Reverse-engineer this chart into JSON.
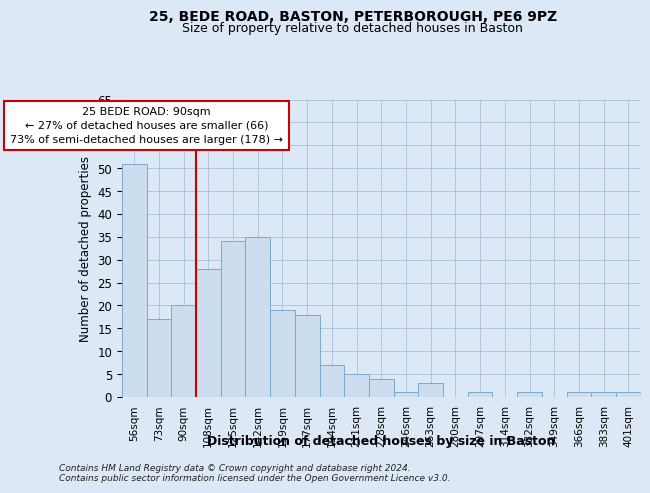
{
  "title_line1": "25, BEDE ROAD, BASTON, PETERBOROUGH, PE6 9PZ",
  "title_line2": "Size of property relative to detached houses in Baston",
  "xlabel": "Distribution of detached houses by size in Baston",
  "ylabel": "Number of detached properties",
  "categories": [
    "56sqm",
    "73sqm",
    "90sqm",
    "108sqm",
    "125sqm",
    "142sqm",
    "159sqm",
    "177sqm",
    "194sqm",
    "211sqm",
    "228sqm",
    "246sqm",
    "263sqm",
    "280sqm",
    "297sqm",
    "314sqm",
    "332sqm",
    "349sqm",
    "366sqm",
    "383sqm",
    "401sqm"
  ],
  "values": [
    51,
    17,
    20,
    28,
    34,
    35,
    19,
    18,
    7,
    5,
    4,
    1,
    3,
    0,
    1,
    0,
    1,
    0,
    1,
    1,
    1
  ],
  "bar_color": "#ccddf0",
  "bar_edge_color": "#7aaacf",
  "highlight_index": 2,
  "highlight_line_color": "#cc0000",
  "annotation_line1": "25 BEDE ROAD: 90sqm",
  "annotation_line2": "← 27% of detached houses are smaller (66)",
  "annotation_line3": "73% of semi-detached houses are larger (178) →",
  "ylim": [
    0,
    65
  ],
  "yticks": [
    0,
    5,
    10,
    15,
    20,
    25,
    30,
    35,
    40,
    45,
    50,
    55,
    60,
    65
  ],
  "footer_line1": "Contains HM Land Registry data © Crown copyright and database right 2024.",
  "footer_line2": "Contains public sector information licensed under the Open Government Licence v3.0.",
  "bg_color": "#dce8f5",
  "grid_color": "#b0c4dc"
}
